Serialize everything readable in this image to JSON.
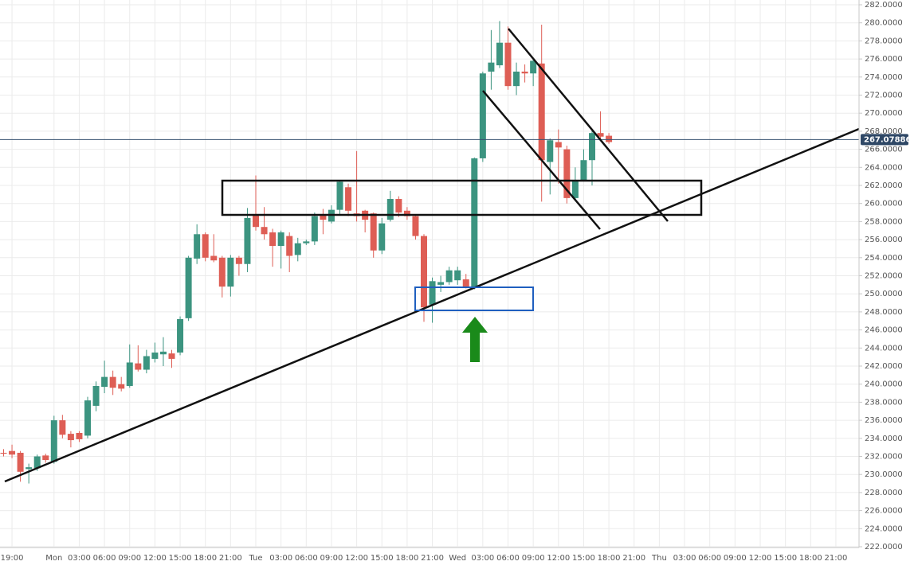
{
  "chart_data": {
    "type": "candlestick",
    "categories": [
      null,
      "19:00",
      null,
      null,
      null,
      null,
      "Mon",
      null,
      null,
      "03:00",
      null,
      null,
      "06:00",
      null,
      null,
      "09:00",
      null,
      null,
      "12:00",
      null,
      null,
      "15:00",
      null,
      null,
      "18:00",
      null,
      null,
      "21:00",
      null,
      null,
      "Tue",
      null,
      null,
      "03:00",
      null,
      null,
      "06:00",
      null,
      null,
      "09:00",
      null,
      null,
      "12:00",
      null,
      null,
      "15:00",
      null,
      null,
      "18:00",
      null,
      null,
      "21:00",
      null,
      null,
      "Wed",
      null,
      null,
      "03:00",
      null,
      null,
      "06:00",
      null,
      null,
      "09:00",
      null,
      null,
      "12:00",
      null,
      null,
      "15:00",
      null,
      null,
      "18:00",
      null,
      null,
      "21:00",
      null,
      null,
      "Thu",
      null,
      null,
      "03:00",
      null,
      null,
      "06:00",
      null,
      null,
      "09:00",
      null,
      null,
      "12:00",
      null,
      null,
      "15:00",
      null,
      null,
      "18:00",
      null,
      null,
      "21:00",
      null,
      null
    ],
    "open": [
      232.4,
      232.6,
      232.4,
      230.6,
      230.7,
      232.1,
      231.4,
      236.0,
      234.5,
      234.6,
      234.3,
      237.6,
      239.7,
      240.8,
      240.0,
      239.8,
      242.3,
      241.6,
      242.8,
      243.3,
      243.4,
      243.5,
      247.3,
      253.9,
      256.6,
      254.2,
      254.0,
      250.8,
      254.0,
      253.3,
      258.8,
      257.4,
      256.8,
      255.3,
      256.4,
      254.3,
      255.6,
      255.8,
      258.8,
      258.0,
      259.3,
      261.8,
      258.9,
      259.2,
      258.9,
      254.8,
      258.2,
      260.5,
      259.2,
      258.6,
      256.4,
      248.8,
      251.0,
      251.3,
      251.5,
      251.6,
      250.8,
      265.0,
      274.6,
      275.3,
      277.8,
      273.0,
      274.6,
      274.4,
      275.5,
      264.6,
      266.8,
      266.0,
      260.6,
      262.6,
      264.8,
      267.8,
      267.5,
      null,
      null,
      null,
      null,
      null,
      null,
      null,
      null,
      null,
      null,
      null,
      null,
      null,
      null,
      null,
      null,
      null,
      null,
      null,
      null,
      null,
      null,
      null,
      null,
      null,
      null,
      null,
      null,
      null
    ],
    "high": [
      232.8,
      233.3,
      232.6,
      231.2,
      232.2,
      232.3,
      236.5,
      236.6,
      234.8,
      234.8,
      238.6,
      240.3,
      242.6,
      241.5,
      240.8,
      244.4,
      244.3,
      243.8,
      244.6,
      245.2,
      243.8,
      247.5,
      254.2,
      257.7,
      256.8,
      256.6,
      254.2,
      254.3,
      254.2,
      259.5,
      263.1,
      259.6,
      257.2,
      257.0,
      256.8,
      256.2,
      256.0,
      259.0,
      259.4,
      259.8,
      262.6,
      262.2,
      265.8,
      259.3,
      259.0,
      258.4,
      261.4,
      260.8,
      259.6,
      258.8,
      256.6,
      251.8,
      252.0,
      253.0,
      253.0,
      252.2,
      265.1,
      274.6,
      279.2,
      280.2,
      279.6,
      275.6,
      275.4,
      276.0,
      279.8,
      267.2,
      268.2,
      266.4,
      264.0,
      266.0,
      268.2,
      270.2,
      267.8,
      null,
      null,
      null,
      null,
      null,
      null,
      null,
      null,
      null,
      null,
      null,
      null,
      null,
      null,
      null,
      null,
      null,
      null,
      null,
      null,
      null,
      null,
      null,
      null,
      null,
      null,
      null,
      null,
      null
    ],
    "low": [
      232.0,
      231.8,
      229.2,
      229.0,
      230.4,
      231.3,
      231.2,
      234.0,
      233.0,
      233.6,
      234.0,
      237.0,
      239.0,
      238.8,
      239.2,
      239.6,
      241.4,
      241.2,
      242.4,
      242.0,
      241.8,
      243.2,
      247.0,
      253.3,
      253.6,
      253.5,
      249.6,
      249.7,
      252.0,
      252.4,
      257.0,
      256.0,
      253.0,
      252.8,
      252.4,
      253.6,
      255.4,
      255.4,
      256.6,
      257.8,
      258.8,
      258.6,
      258.0,
      256.8,
      254.0,
      254.4,
      258.0,
      258.5,
      258.2,
      256.0,
      246.9,
      246.8,
      250.2,
      251.0,
      251.0,
      250.6,
      250.5,
      264.6,
      272.6,
      275.0,
      272.6,
      272.0,
      273.4,
      273.0,
      260.2,
      261.0,
      262.2,
      260.0,
      260.4,
      262.6,
      262.0,
      267.0,
      266.6,
      null,
      null,
      null,
      null,
      null,
      null,
      null,
      null,
      null,
      null,
      null,
      null,
      null,
      null,
      null,
      null,
      null,
      null,
      null,
      null,
      null,
      null,
      null,
      null,
      null,
      null,
      null,
      null,
      null
    ],
    "close": [
      232.3,
      232.2,
      230.3,
      230.8,
      232.0,
      231.6,
      236.0,
      234.4,
      233.8,
      233.9,
      238.2,
      239.8,
      240.8,
      239.6,
      239.5,
      242.4,
      241.6,
      243.1,
      243.5,
      243.6,
      242.8,
      247.2,
      254.0,
      256.6,
      254.0,
      253.7,
      250.8,
      254.0,
      253.3,
      258.4,
      257.4,
      256.6,
      255.3,
      256.8,
      254.2,
      255.6,
      255.8,
      258.6,
      258.2,
      259.3,
      262.4,
      259.2,
      258.6,
      258.2,
      254.8,
      257.8,
      260.5,
      259.0,
      258.6,
      256.4,
      248.5,
      251.4,
      251.3,
      252.6,
      252.6,
      250.8,
      265.0,
      274.4,
      275.6,
      277.8,
      273.0,
      274.6,
      274.4,
      275.8,
      264.8,
      267.0,
      266.2,
      260.6,
      262.6,
      264.8,
      267.8,
      267.4,
      266.8,
      null,
      null,
      null,
      null,
      null,
      null,
      null,
      null,
      null,
      null,
      null,
      null,
      null,
      null,
      null,
      null,
      null,
      null,
      null,
      null,
      null,
      null,
      null,
      null,
      null,
      null,
      null,
      null,
      null
    ],
    "up_color": "#3c9480",
    "down_color": "#de5e55",
    "last_price": 267.07886,
    "ylim": [
      222,
      282
    ],
    "yticks": [
      {
        "value": 222,
        "label": "222.0000"
      },
      {
        "value": 224,
        "label": "224.0000"
      },
      {
        "value": 226,
        "label": "226.0000"
      },
      {
        "value": 228,
        "label": "228.0000"
      },
      {
        "value": 230,
        "label": "230.0000"
      },
      {
        "value": 232,
        "label": "232.0000"
      },
      {
        "value": 234,
        "label": "234.0000"
      },
      {
        "value": 236,
        "label": "236.0000"
      },
      {
        "value": 238,
        "label": "238.0000"
      },
      {
        "value": 240,
        "label": "240.0000"
      },
      {
        "value": 242,
        "label": "242.0000"
      },
      {
        "value": 244,
        "label": "244.0000"
      },
      {
        "value": 246,
        "label": "246.0000"
      },
      {
        "value": 248,
        "label": "248.0000"
      },
      {
        "value": 250,
        "label": "250.0000"
      },
      {
        "value": 252,
        "label": "252.0000"
      },
      {
        "value": 254,
        "label": "254.0000"
      },
      {
        "value": 256,
        "label": "256.0000"
      },
      {
        "value": 258,
        "label": "258.0000"
      },
      {
        "value": 260,
        "label": "260.0000"
      },
      {
        "value": 262,
        "label": "262.0000"
      },
      {
        "value": 264,
        "label": "264.0000"
      },
      {
        "value": 266,
        "label": "266.0000"
      },
      {
        "value": 268,
        "label": "268.0000"
      },
      {
        "value": 270,
        "label": "270.0000"
      },
      {
        "value": 272,
        "label": "272.0000"
      },
      {
        "value": 274,
        "label": "274.0000"
      },
      {
        "value": 276,
        "label": "276.0000"
      },
      {
        "value": 278,
        "label": "278.0000"
      },
      {
        "value": 280,
        "label": "280.0000"
      },
      {
        "value": 282,
        "label": "282.0000"
      }
    ],
    "grid": true
  }
}
